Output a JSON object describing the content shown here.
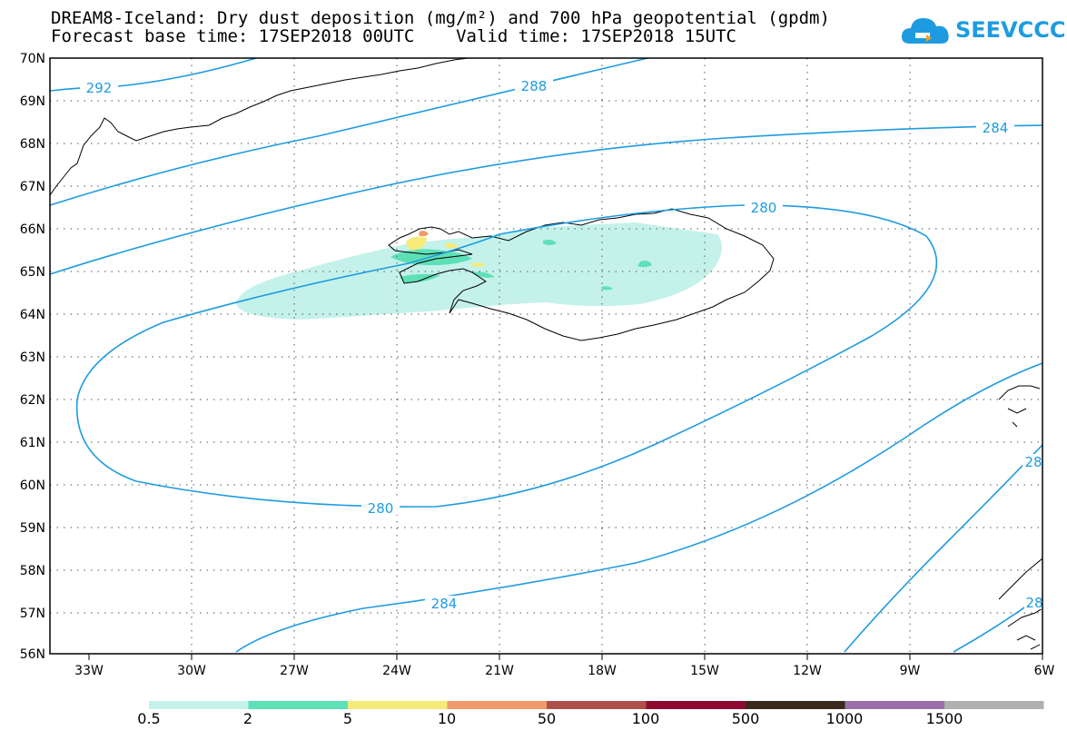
{
  "title_line1": "DREAM8-Iceland: Dry dust deposition (mg/m²) and 700 hPa geopotential (gpdm)",
  "title_line2": "Forecast base time: 17SEP2018 00UTC    Valid time: 17SEP2018 15UTC",
  "logo": {
    "text": "SEEVCCC",
    "color": "#1e9be0"
  },
  "map": {
    "lat_labels": [
      "70N",
      "69N",
      "68N",
      "67N",
      "66N",
      "65N",
      "64N",
      "63N",
      "62N",
      "61N",
      "60N",
      "59N",
      "58N",
      "57N",
      "56N"
    ],
    "lon_labels": [
      "33W",
      "30W",
      "27W",
      "24W",
      "21W",
      "18W",
      "15W",
      "12W",
      "9W",
      "6W"
    ],
    "contour_color": "#1e9be0",
    "contour_labels": [
      "292",
      "288",
      "284",
      "280",
      "280",
      "284",
      "28",
      "28"
    ]
  },
  "legend": {
    "colors": [
      "#c4f2ea",
      "#5ee0b6",
      "#f5ea7a",
      "#f0996b",
      "#ad5048",
      "#8f0a30",
      "#3b2a1c",
      "#9a6fa8",
      "#b0b0b0"
    ],
    "labels": [
      "0.5",
      "2",
      "5",
      "10",
      "50",
      "100",
      "500",
      "1000",
      "1500"
    ]
  }
}
